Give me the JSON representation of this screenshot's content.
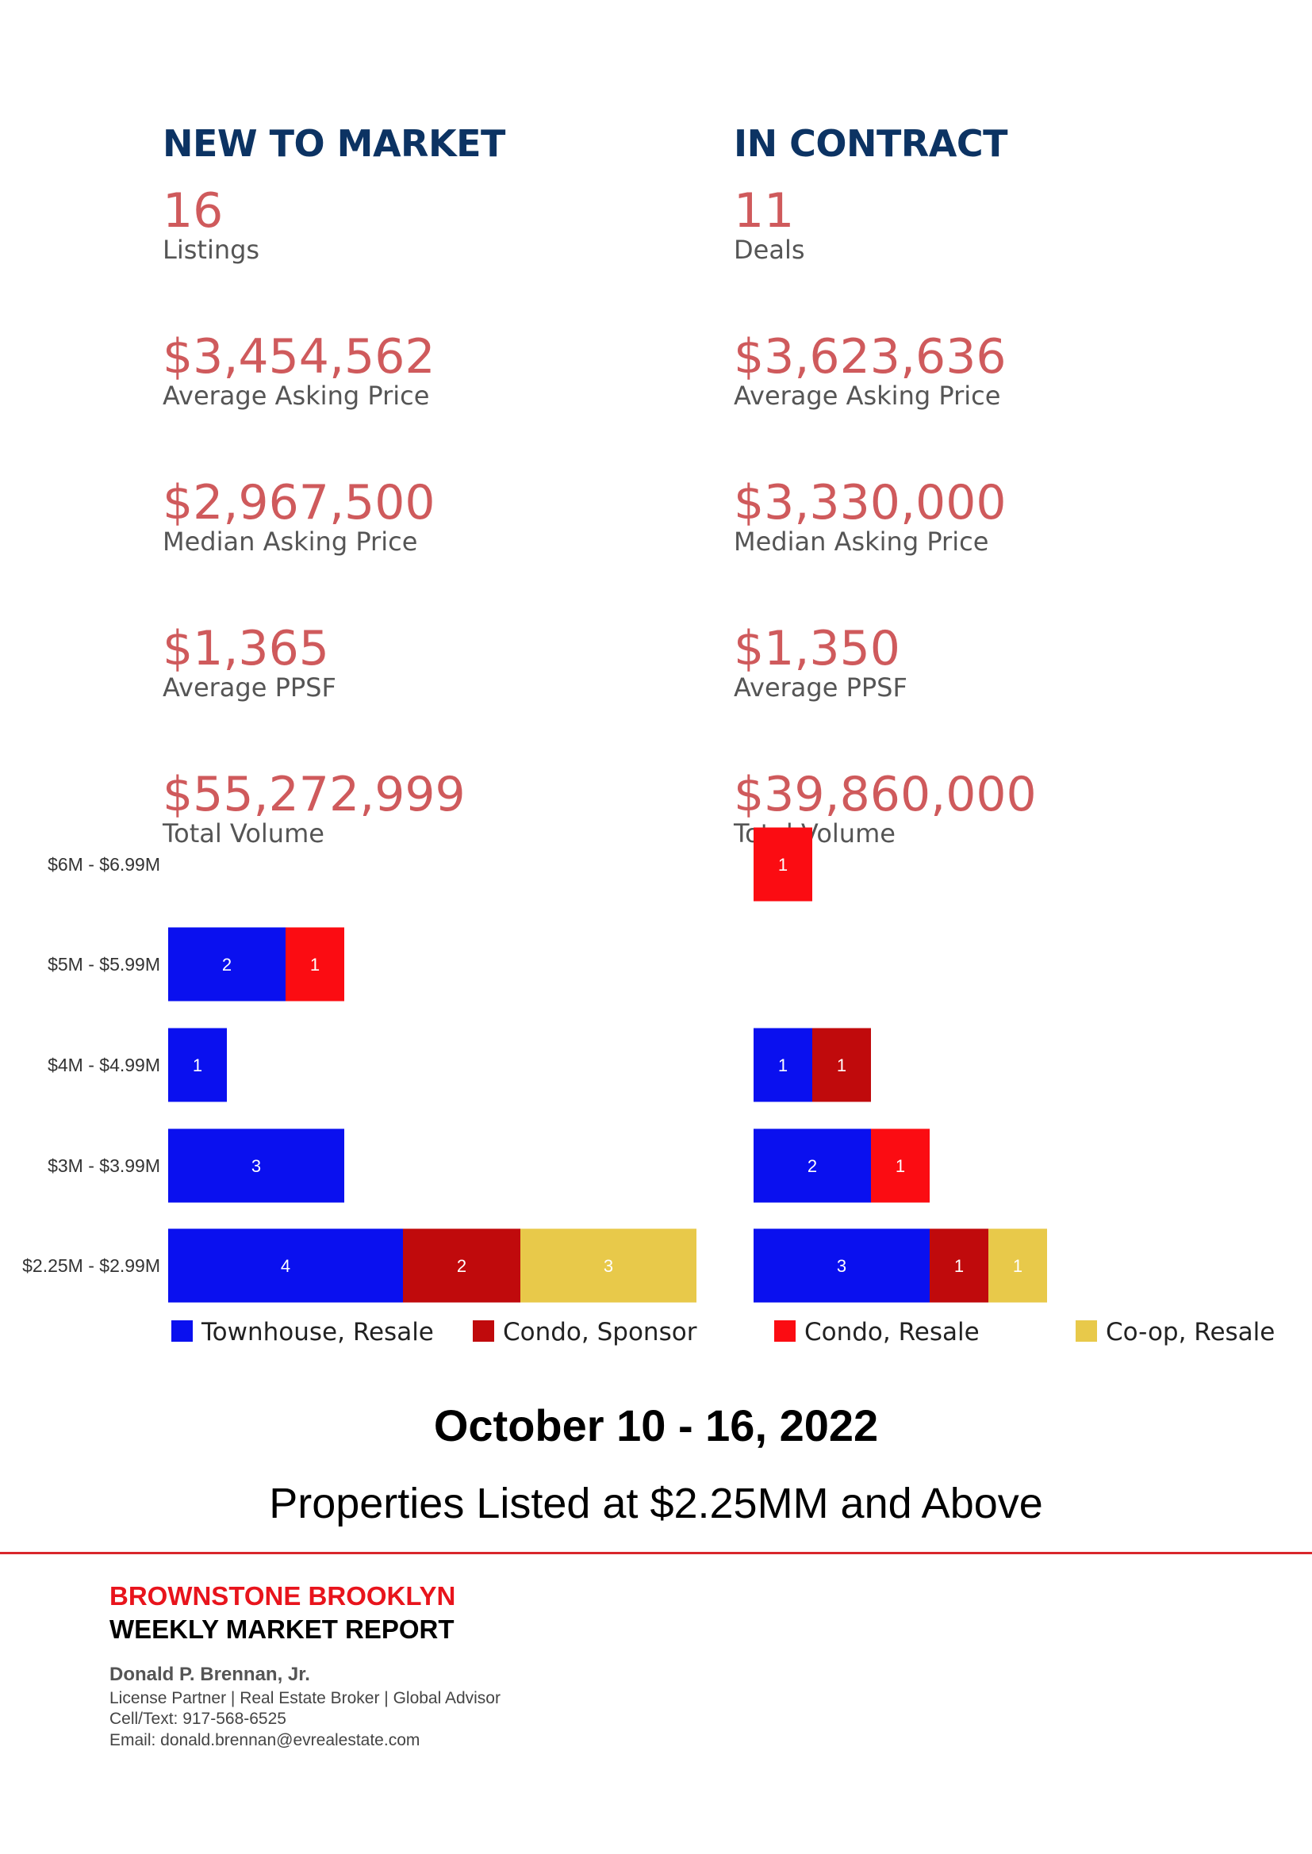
{
  "new_to_market": {
    "title": "NEW TO MARKET",
    "stats": [
      {
        "value": "16",
        "label": "Listings"
      },
      {
        "value": "$3,454,562",
        "label": "Average Asking Price"
      },
      {
        "value": "$2,967,500",
        "label": "Median Asking Price"
      },
      {
        "value": "$1,365",
        "label": "Average PPSF"
      },
      {
        "value": "$55,272,999",
        "label": "Total Volume"
      }
    ]
  },
  "in_contract": {
    "title": "IN CONTRACT",
    "stats": [
      {
        "value": "11",
        "label": "Deals"
      },
      {
        "value": "$3,623,636",
        "label": "Average Asking Price"
      },
      {
        "value": "$3,330,000",
        "label": "Median Asking Price"
      },
      {
        "value": "$1,350",
        "label": "Average PPSF"
      },
      {
        "value": "$39,860,000",
        "label": "Total Volume"
      }
    ]
  },
  "chart_data": {
    "type": "bar",
    "orientation": "horizontal",
    "stacked": true,
    "categories": [
      "$6M - $6.99M",
      "$5M - $5.99M",
      "$4M - $4.99M",
      "$3M - $3.99M",
      "$2.25M - $2.99M"
    ],
    "series": [
      {
        "name": "Townhouse, Resale",
        "color": "#0a10ef"
      },
      {
        "name": "Condo, Sponsor",
        "color": "#c00a0c"
      },
      {
        "name": "Condo, Resale",
        "color": "#fb0c12"
      },
      {
        "name": "Co-op, Resale",
        "color": "#e8c94a"
      }
    ],
    "panels": [
      {
        "segments": [
          [],
          [
            {
              "series": 0,
              "value": 2
            },
            {
              "series": 2,
              "value": 1
            }
          ],
          [
            {
              "series": 0,
              "value": 1
            }
          ],
          [
            {
              "series": 0,
              "value": 3
            }
          ],
          [
            {
              "series": 0,
              "value": 4
            },
            {
              "series": 1,
              "value": 2
            },
            {
              "series": 3,
              "value": 3
            }
          ]
        ]
      },
      {
        "segments": [
          [
            {
              "series": 2,
              "value": 1
            }
          ],
          [],
          [
            {
              "series": 0,
              "value": 1
            },
            {
              "series": 1,
              "value": 1
            }
          ],
          [
            {
              "series": 0,
              "value": 2
            },
            {
              "series": 2,
              "value": 1
            }
          ],
          [
            {
              "series": 0,
              "value": 3
            },
            {
              "series": 1,
              "value": 1
            },
            {
              "series": 3,
              "value": 1
            }
          ]
        ]
      }
    ],
    "legend_position": "bottom"
  },
  "period": "October 10 - 16, 2022",
  "subtitle": "Properties Listed at $2.25MM and Above",
  "footer": {
    "brand": "BROWNSTONE BROOKLYN",
    "report": "WEEKLY MARKET REPORT",
    "agent_name": "Donald P. Brennan, Jr.",
    "agent_title": "License Partner | Real Estate Broker | Global Advisor",
    "phone": "Cell/Text: 917-568-6525",
    "email": "Email: donald.brennan@evrealestate.com"
  }
}
